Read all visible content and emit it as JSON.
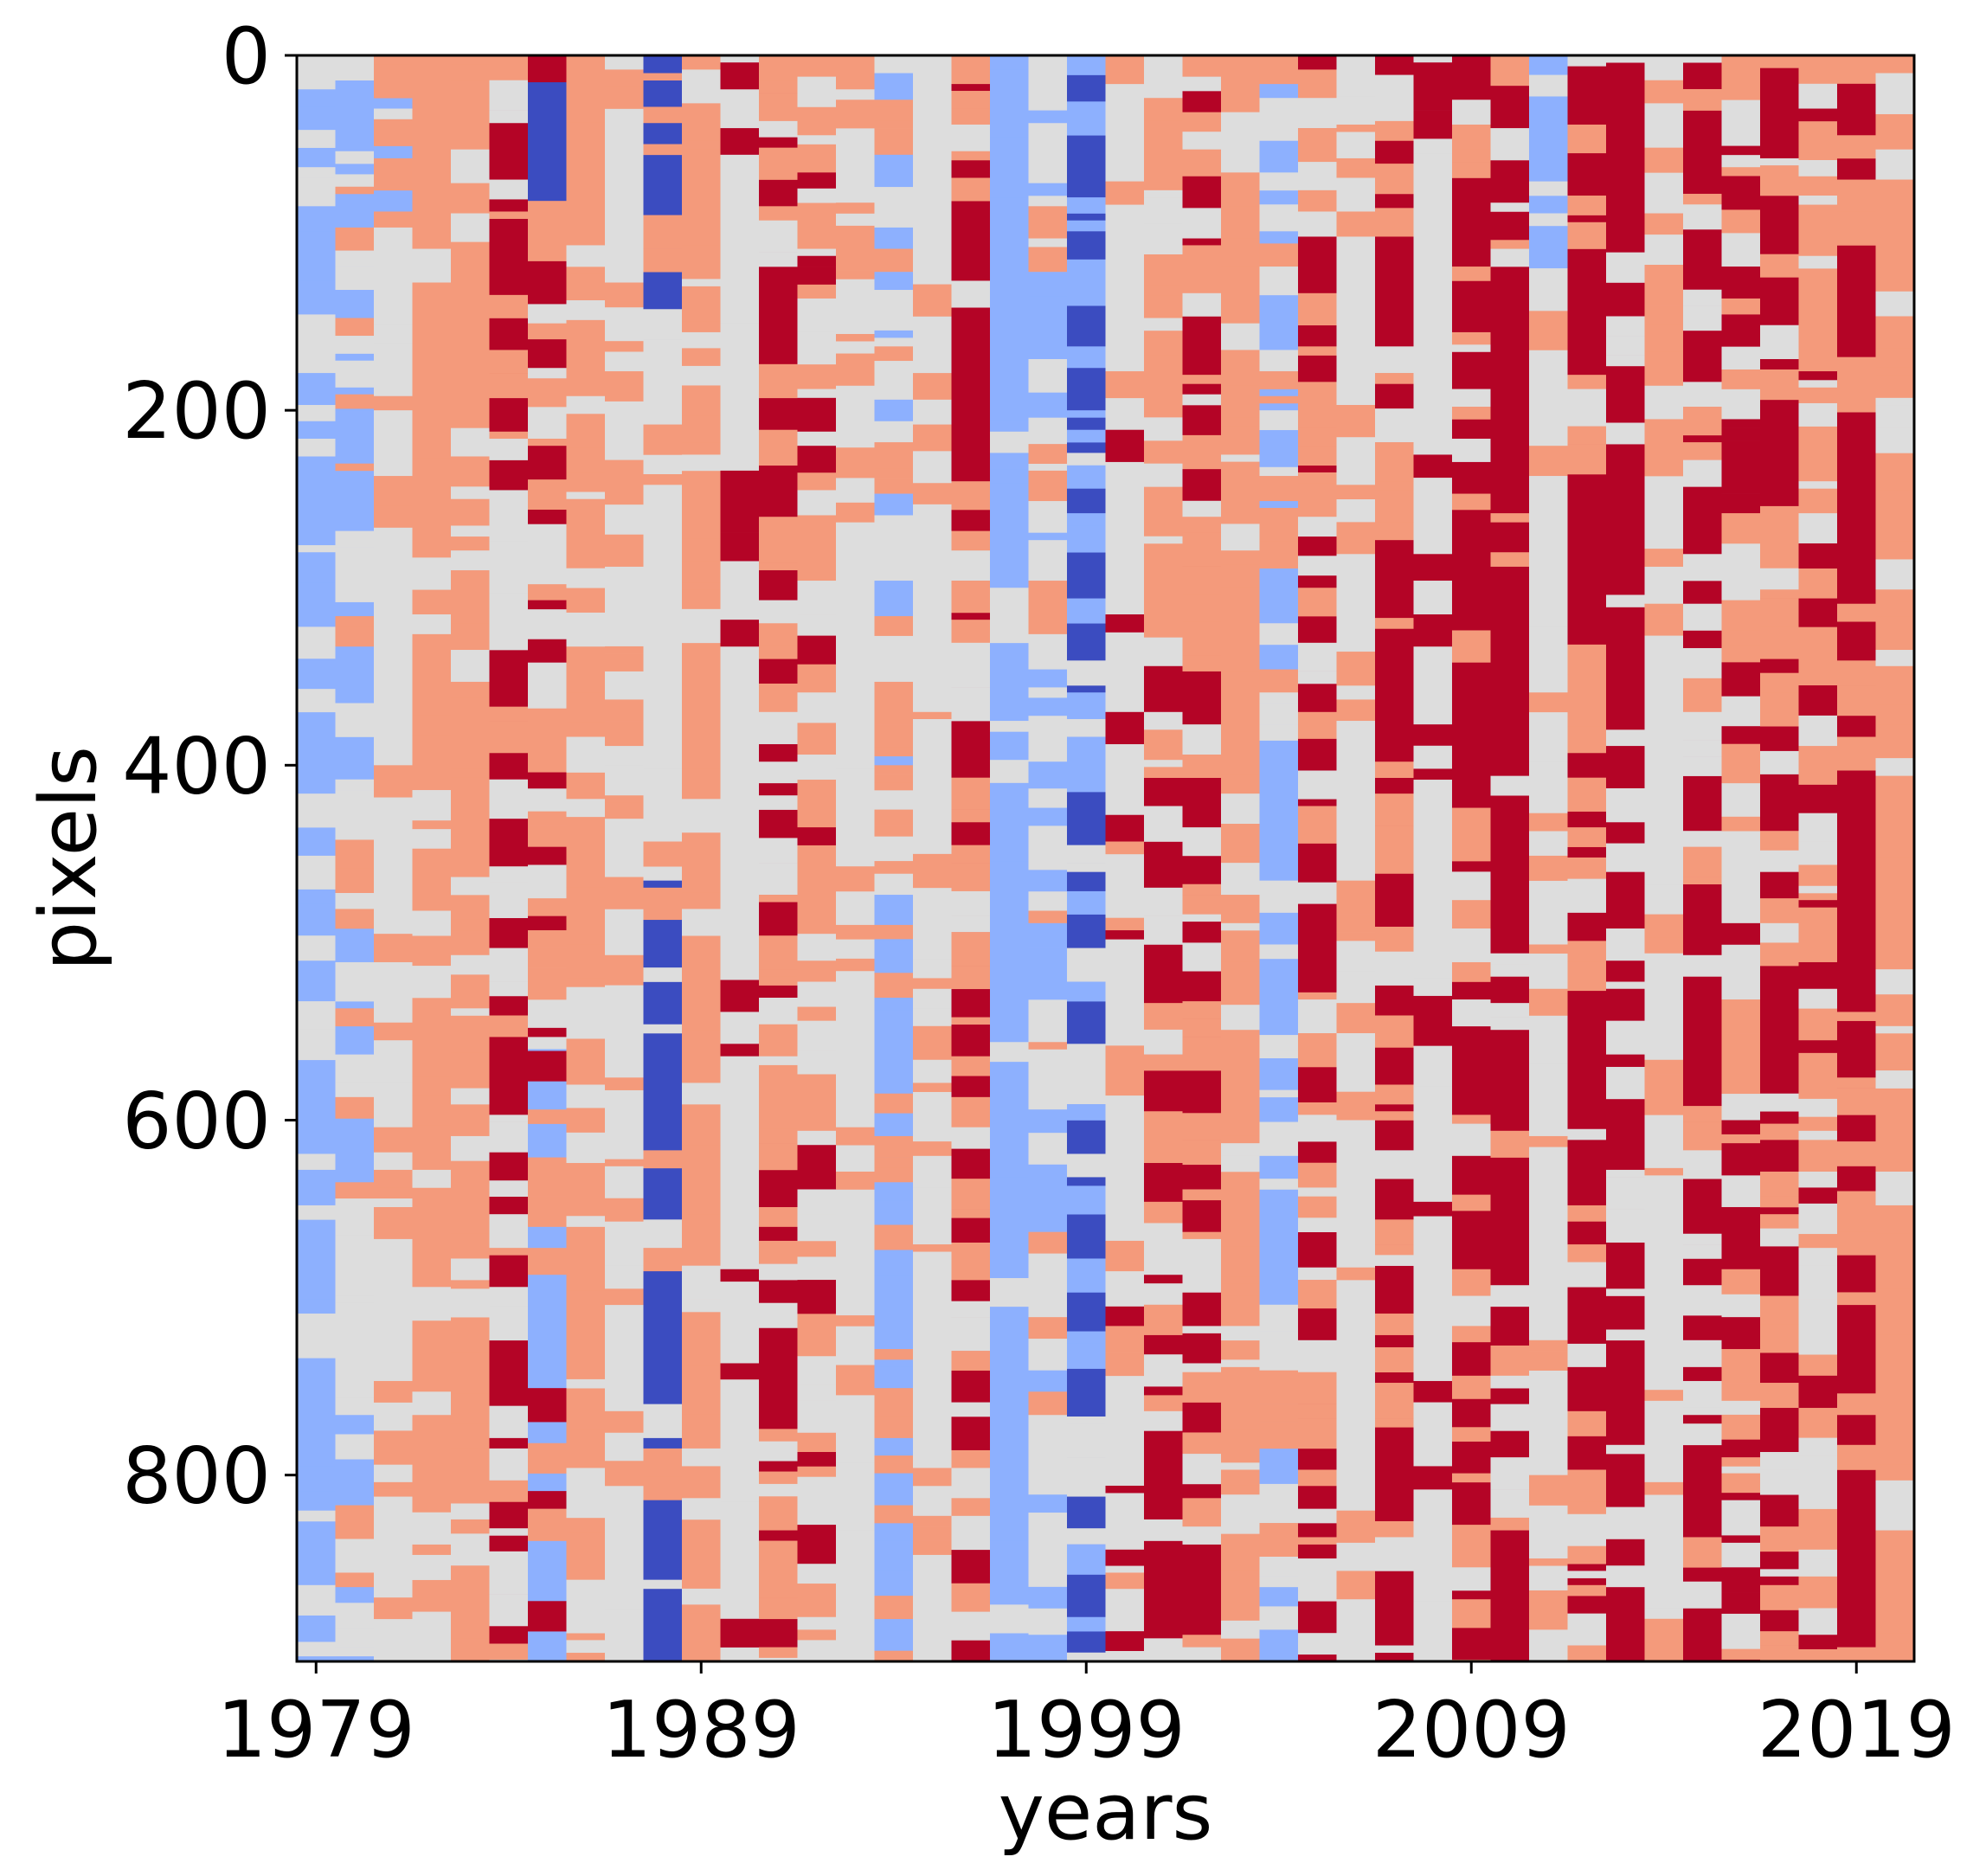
{
  "chart_data": {
    "type": "heatmap",
    "title": "",
    "xlabel": "years",
    "ylabel": "pixels",
    "x_ticks": [
      1979,
      1989,
      1999,
      2009,
      2019
    ],
    "x_tick_labels": [
      "1979",
      "1989",
      "1999",
      "2009",
      "2019"
    ],
    "y_ticks": [
      0,
      200,
      400,
      600,
      800
    ],
    "y_tick_labels": [
      "0",
      "200",
      "400",
      "600",
      "800"
    ],
    "xlim": [
      1978.5,
      2020.5
    ],
    "ylim": [
      905,
      0
    ],
    "n_years": 42,
    "n_pixels": 905,
    "colormap": "coolwarm",
    "palette": [
      "#3b4cc0",
      "#8db0fe",
      "#dddddd",
      "#f49a7b",
      "#b40426"
    ],
    "column_segments": [
      [
        [
          0,
          905,
          1
        ]
      ],
      [
        [
          0,
          640,
          1
        ],
        [
          640,
          760,
          2
        ],
        [
          760,
          905,
          1
        ]
      ],
      [
        [
          0,
          120,
          1
        ],
        [
          120,
          905,
          2
        ]
      ],
      [
        [
          0,
          905,
          3
        ]
      ],
      [
        [
          0,
          905,
          3
        ]
      ],
      [
        [
          0,
          420,
          4
        ],
        [
          420,
          905,
          4
        ]
      ],
      [
        [
          0,
          140,
          0
        ],
        [
          140,
          560,
          2
        ],
        [
          560,
          905,
          1
        ]
      ],
      [
        [
          0,
          905,
          3
        ]
      ],
      [
        [
          0,
          905,
          2
        ]
      ],
      [
        [
          0,
          160,
          0
        ],
        [
          160,
          465,
          2
        ],
        [
          465,
          550,
          0
        ],
        [
          550,
          905,
          0
        ]
      ],
      [
        [
          0,
          905,
          3
        ]
      ],
      [
        [
          0,
          905,
          2
        ]
      ],
      [
        [
          0,
          905,
          4
        ]
      ],
      [
        [
          0,
          905,
          3
        ]
      ],
      [
        [
          0,
          905,
          2
        ]
      ],
      [
        [
          0,
          500,
          2
        ],
        [
          500,
          905,
          1
        ]
      ],
      [
        [
          0,
          905,
          2
        ]
      ],
      [
        [
          0,
          905,
          4
        ]
      ],
      [
        [
          0,
          905,
          1
        ]
      ],
      [
        [
          0,
          905,
          2
        ]
      ],
      [
        [
          0,
          905,
          0
        ]
      ],
      [
        [
          0,
          905,
          2
        ]
      ],
      [
        [
          0,
          340,
          3
        ],
        [
          340,
          905,
          4
        ]
      ],
      [
        [
          0,
          905,
          4
        ]
      ],
      [
        [
          0,
          905,
          3
        ]
      ],
      [
        [
          0,
          905,
          1
        ]
      ],
      [
        [
          0,
          905,
          4
        ]
      ],
      [
        [
          0,
          905,
          2
        ]
      ],
      [
        [
          0,
          905,
          4
        ]
      ],
      [
        [
          0,
          905,
          2
        ]
      ],
      [
        [
          0,
          905,
          4
        ]
      ],
      [
        [
          0,
          905,
          4
        ]
      ],
      [
        [
          0,
          120,
          1
        ],
        [
          120,
          905,
          2
        ]
      ],
      [
        [
          0,
          905,
          4
        ]
      ],
      [
        [
          0,
          905,
          4
        ]
      ],
      [
        [
          0,
          905,
          2
        ]
      ],
      [
        [
          0,
          905,
          4
        ]
      ],
      [
        [
          0,
          905,
          2
        ]
      ],
      [
        [
          0,
          905,
          4
        ]
      ],
      [
        [
          0,
          905,
          3
        ]
      ],
      [
        [
          0,
          905,
          4
        ]
      ],
      [
        [
          0,
          905,
          3
        ]
      ]
    ],
    "stripe_density": [
      0.55,
      0.5,
      0.45,
      0.5,
      0.5,
      0.6,
      0.55,
      0.45,
      0.55,
      0.3,
      0.55,
      0.5,
      0.6,
      0.55,
      0.4,
      0.5,
      0.55,
      0.5,
      0.35,
      0.55,
      0.6,
      0.25,
      0.5,
      0.55,
      0.5,
      0.45,
      0.5,
      0.55,
      0.45,
      0.5,
      0.45,
      0.3,
      0.35,
      0.4,
      0.45,
      0.5,
      0.35,
      0.55,
      0.4,
      0.5,
      0.45,
      0.5
    ],
    "stripe_colors": [
      [
        2,
        1
      ],
      [
        2,
        3
      ],
      [
        3,
        2
      ],
      [
        2,
        3
      ],
      [
        3,
        2
      ],
      [
        2,
        3
      ],
      [
        3,
        4
      ],
      [
        2,
        3
      ],
      [
        3,
        2
      ],
      [
        3,
        2
      ],
      [
        3,
        2
      ],
      [
        2,
        4
      ],
      [
        3,
        2
      ],
      [
        2,
        4
      ],
      [
        3,
        2
      ],
      [
        3,
        1
      ],
      [
        2,
        3
      ],
      [
        3,
        2
      ],
      [
        1,
        2
      ],
      [
        1,
        3
      ],
      [
        1,
        2
      ],
      [
        3,
        4
      ],
      [
        2,
        3
      ],
      [
        3,
        2
      ],
      [
        3,
        2
      ],
      [
        2,
        3
      ],
      [
        3,
        2
      ],
      [
        2,
        3
      ],
      [
        3,
        2
      ],
      [
        2,
        4
      ],
      [
        3,
        2
      ],
      [
        2,
        3
      ],
      [
        3,
        2
      ],
      [
        3,
        2
      ],
      [
        2,
        4
      ],
      [
        3,
        2
      ],
      [
        2,
        3
      ],
      [
        3,
        4
      ],
      [
        3,
        2
      ],
      [
        2,
        4
      ],
      [
        3,
        4
      ],
      [
        3,
        2
      ]
    ],
    "grid": false,
    "legend": "none"
  }
}
